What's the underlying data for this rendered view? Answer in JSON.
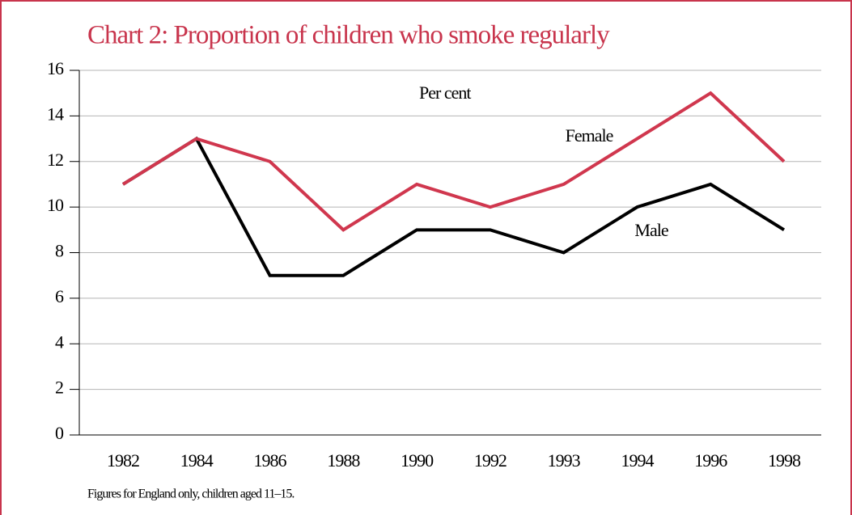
{
  "chart_data": {
    "type": "line",
    "title": "Chart 2: Proportion of children who smoke regularly",
    "unit_label": "Per cent",
    "note": "Figures for England only, children aged 11–15.",
    "categories": [
      "1982",
      "1984",
      "1986",
      "1988",
      "1990",
      "1992",
      "1993",
      "1994",
      "1996",
      "1998"
    ],
    "series": [
      {
        "name": "Female",
        "color": "#d0374e",
        "values": [
          11,
          13,
          12,
          9,
          11,
          10,
          11,
          13,
          15,
          12
        ]
      },
      {
        "name": "Male",
        "color": "#000000",
        "values": [
          11,
          13,
          7,
          7,
          9,
          9,
          8,
          10,
          11,
          9
        ]
      }
    ],
    "ylim": [
      0,
      16
    ],
    "yticks": [
      0,
      2,
      4,
      6,
      8,
      10,
      12,
      14,
      16
    ],
    "grid": true
  }
}
